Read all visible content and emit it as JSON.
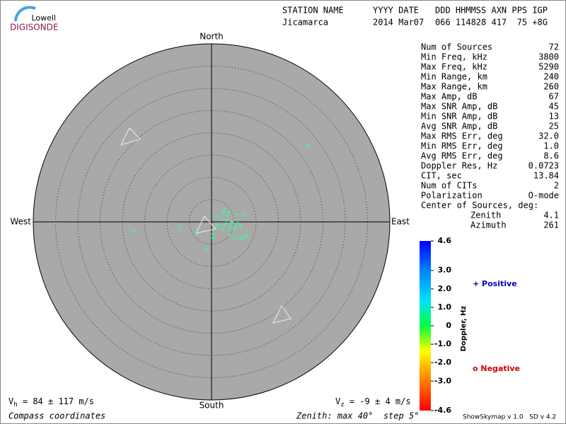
{
  "logo": {
    "top": "Lowell",
    "bottom": "DIGISONDE"
  },
  "header": {
    "labels": [
      "STATION NAME",
      "YYYY DATE",
      "DDD HHMMSS AXN PPS IGP"
    ],
    "values": [
      "Jicamarca",
      "2014 Mar07",
      "066 114828 417  75 +8G"
    ]
  },
  "chart_data": {
    "type": "polar-scatter",
    "directions": {
      "north": "North",
      "south": "South",
      "east": "East",
      "west": "West"
    },
    "rlim": [
      0,
      40
    ],
    "rticks": [
      5,
      10,
      15,
      20,
      25,
      30,
      35
    ],
    "color": "#33ff99",
    "x": [
      3.0,
      4.1,
      5.7,
      7.1,
      1.1,
      2.2,
      3.3,
      4.6,
      5.9,
      3.0,
      1.7,
      4.1,
      5.4,
      6.5,
      2.5,
      7.9,
      7.3,
      6.5,
      5.2,
      4.1,
      0.2,
      0.3,
      -3.5,
      2.7,
      4.9,
      3.7,
      1.1,
      21.6,
      -17.5,
      -7.3,
      -1.0
    ],
    "y": [
      3.0,
      2.2,
      1.7,
      1.7,
      1.1,
      0.6,
      0.3,
      0,
      -0.3,
      -0.6,
      -0.6,
      -1.3,
      -1.1,
      -1.0,
      -1.7,
      -3.0,
      -3.5,
      -3.7,
      -3.7,
      -3.0,
      -3.7,
      -2.7,
      -2.7,
      2.2,
      -1.7,
      1.4,
      -1.0,
      17.1,
      -2.1,
      -1.6,
      -6.0
    ],
    "colorbar": {
      "label": "Doppler, Hz",
      "lim": [
        -4.6,
        4.6
      ],
      "ticks": [
        4.6,
        {
          "value": 3,
          "label": "3.0"
        },
        {
          "value": 2,
          "label": "2.0"
        },
        {
          "value": 1,
          "label": "1.0"
        },
        0,
        {
          "value": -1,
          "label": "-1.0"
        },
        {
          "value": -2,
          "label": "-2.0"
        },
        {
          "value": -3,
          "label": "-3.0"
        },
        -4.6
      ]
    },
    "legend": {
      "positive": "+ Positive",
      "negative": "o Negative"
    }
  },
  "stats": {
    "rows": [
      [
        "Num of Sources",
        "72"
      ],
      [
        "Min Freq, kHz",
        "3800"
      ],
      [
        "Max Freq, kHz",
        "5290"
      ],
      [
        "Min Range, km",
        "240"
      ],
      [
        "Max Range, km",
        "260"
      ],
      [
        "Max Amp, dB",
        "67"
      ],
      [
        "Max SNR Amp, dB",
        "45"
      ],
      [
        "Min SNR Amp, dB",
        "13"
      ],
      [
        "Avg SNR Amp, dB",
        "25"
      ],
      [
        "Max RMS Err, deg",
        "32.0"
      ],
      [
        "Min RMS Err, deg",
        "1.0"
      ],
      [
        "Avg RMS Err, deg",
        "8.6"
      ],
      [
        "Doppler Res, Hz",
        "0.0723"
      ],
      [
        "CIT, sec",
        "13.84"
      ],
      [
        "Num of CITs",
        "2"
      ],
      [
        "Polarization",
        "O-mode"
      ]
    ],
    "center_title": "Center of Sources, deg:",
    "center_rows": [
      [
        "Zenith",
        "4.1"
      ],
      [
        "Azimuth",
        "261"
      ]
    ]
  },
  "footer": {
    "vh": [
      "V",
      "h",
      " = 84 ± 117 m/s"
    ],
    "vz": [
      "V",
      "z",
      " = -9 ± 4 m/s"
    ],
    "coords": "Compass coordinates",
    "zenith": "Zenith: max 40°  step 5°",
    "version": "ShowSkymap v 1.0   SD v 4.2"
  }
}
